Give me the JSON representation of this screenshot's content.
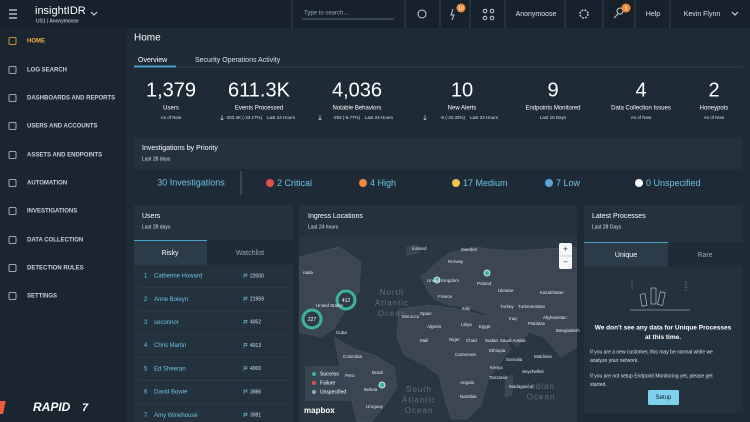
{
  "header": {
    "brand": "insightIDR",
    "org": "US1 | Anonymoose",
    "search_placeholder": "Type to search...",
    "alerts_badge": "10",
    "notifications_badge": "5",
    "org_name": "Anonymoose",
    "help": "Help",
    "user": "Kevin Flynn"
  },
  "sidebar": {
    "items": [
      "HOME",
      "LOG SEARCH",
      "DASHBOARDS AND REPORTS",
      "USERS AND ACCOUNTS",
      "ASSETS AND ENDPOINTS",
      "AUTOMATION",
      "INVESTIGATIONS",
      "DATA COLLECTION",
      "DETECTION RULES",
      "SETTINGS"
    ],
    "logo": "RAPID",
    "logo_mark": "7"
  },
  "page": {
    "title": "Home",
    "tabs": [
      "Overview",
      "Security Operations Activity"
    ]
  },
  "stats": [
    {
      "value": "1,379",
      "label": "Users",
      "sub": "As of Now"
    },
    {
      "value": "611.3K",
      "label": "Events Processed",
      "delta": "-303.4K (-33.17%)",
      "sub": "Last 24 Hours"
    },
    {
      "value": "4,036",
      "label": "Notable Behaviors",
      "delta": "-293 (-6.77%)",
      "sub": "Last 24 Hours"
    },
    {
      "value": "10",
      "label": "New Alerts",
      "delta": "-5 (-33.33%)",
      "sub": "Last 24 Hours"
    },
    {
      "value": "9",
      "label": "Endpoints Monitored",
      "sub": "Last 15 Days"
    },
    {
      "value": "4",
      "label": "Data Collection Issues",
      "sub": "As of Now"
    },
    {
      "value": "2",
      "label": "Honeypots",
      "sub": "As of Now"
    }
  ],
  "investigations": {
    "title": "Investigations by Priority",
    "subtitle": "Last 28 days",
    "total": "30 Investigations",
    "priorities": [
      {
        "label": "2 Critical",
        "color": "#e0524f"
      },
      {
        "label": "4 High",
        "color": "#f08a3c"
      },
      {
        "label": "17 Medium",
        "color": "#f2c14e"
      },
      {
        "label": "7 Low",
        "color": "#5aa6d6"
      },
      {
        "label": "0 Unspecified",
        "color": "#ffffff"
      }
    ]
  },
  "users": {
    "title": "Users",
    "subtitle": "Last 28 days",
    "tabs": [
      "Risky",
      "Watchlist"
    ],
    "rows": [
      [
        "1",
        "Catherine Howard",
        "22000"
      ],
      [
        "2",
        "Anne Boleyn",
        "21959"
      ],
      [
        "3",
        "soconnor",
        "4052"
      ],
      [
        "4",
        "Chris Martin",
        "4013"
      ],
      [
        "5",
        "Ed Sheeran",
        "4000"
      ],
      [
        "6",
        "David Bowie",
        "3986"
      ],
      [
        "7",
        "Amy Winehouse",
        "3981"
      ]
    ]
  },
  "map": {
    "title": "Ingress Locations",
    "subtitle": "Last 24 hours",
    "labels": [
      "nada",
      "Iceland",
      "Sweden",
      "Norway",
      "United Kingdom",
      "Poland",
      "Ukraine",
      "Kazakhstan",
      "France",
      "Italy",
      "Spain",
      "Turkey",
      "Turkmenistan",
      "Afghanistan",
      "Pakistan",
      "Morocco",
      "Libya",
      "Egypt",
      "Algeria",
      "Iraq",
      "Saudi Arabia",
      "United States",
      "Cuba",
      "Mali",
      "Niger",
      "Chad",
      "Sudan",
      "Bangladesh",
      "Cameroon",
      "Ethiopia",
      "Somalia",
      "Kenya",
      "Tanzania",
      "Maldives",
      "Seychelles",
      "Angola",
      "Madagascar",
      "Namibia",
      "Colombia",
      "Peru",
      "Brazil",
      "Bolivia",
      "Uruguay"
    ],
    "oceans": [
      [
        "North",
        "Atlantic",
        "Ocean"
      ],
      [
        "South",
        "Atlantic",
        "Ocean"
      ],
      [
        "Indian",
        "Ocean"
      ]
    ],
    "clusters": [
      "412",
      "227"
    ],
    "legend": [
      "Success",
      "Failure",
      "Unspecified"
    ],
    "attribution": "mapbox",
    "zoom": [
      "+",
      "−"
    ]
  },
  "processes": {
    "title": "Latest Processes",
    "subtitle": "Last 28 Days",
    "tabs": [
      "Unique",
      "Rare"
    ],
    "message": [
      "We don't see any data for Unique Processes",
      "at this time."
    ],
    "paragraphs": [
      [
        "If you are a new customer, this may be normal while we",
        "analyze your network."
      ],
      [
        "If you are not setup Endpoint Monitoring yet, please get",
        "started."
      ]
    ],
    "button": "Setup"
  }
}
